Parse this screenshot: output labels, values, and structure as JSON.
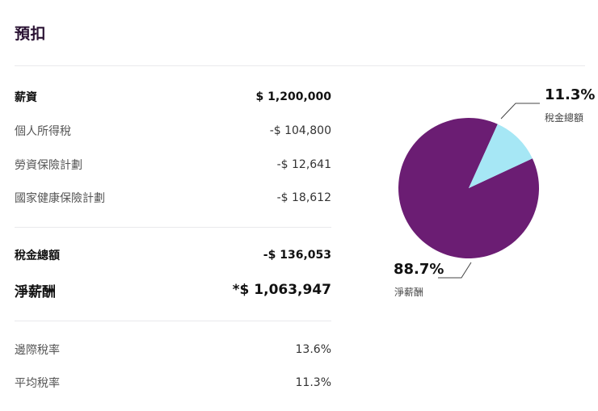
{
  "section": {
    "title": "預扣"
  },
  "rows": {
    "salary": {
      "label": "薪資",
      "value": "$ 1,200,000"
    },
    "income_tax": {
      "label": "個人所得稅",
      "value": "-$ 104,800"
    },
    "labor_insurance": {
      "label": "勞資保險計劃",
      "value": "-$ 12,641"
    },
    "health_insurance": {
      "label": "國家健康保險計劃",
      "value": "-$ 18,612"
    },
    "total_tax": {
      "label": "稅金總額",
      "value": "-$ 136,053"
    },
    "net_pay": {
      "label": "淨薪酬",
      "value": "*$ 1,063,947"
    },
    "marginal_rate": {
      "label": "邊際稅率",
      "value": "13.6%"
    },
    "average_rate": {
      "label": "平均稅率",
      "value": "11.3%"
    }
  },
  "chart_data": {
    "type": "pie",
    "slices": [
      {
        "label": "淨薪酬",
        "value": 88.7,
        "display": "88.7%",
        "color": "#6b1d73"
      },
      {
        "label": "稅金總額",
        "value": 11.3,
        "display": "11.3%",
        "color": "#a6e7f5"
      }
    ]
  }
}
